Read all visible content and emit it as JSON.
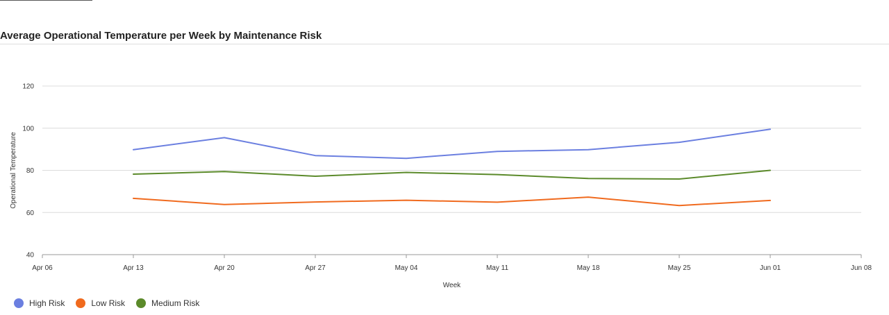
{
  "title": "Average Operational Temperature per Week by Maintenance Risk",
  "chart_data": {
    "type": "line",
    "title": "Average Operational Temperature per Week by Maintenance Risk",
    "xlabel": "Week",
    "ylabel": "Operational Temperature",
    "x_ticks": [
      "Apr 06",
      "Apr 13",
      "Apr 20",
      "Apr 27",
      "May 04",
      "May 11",
      "May 18",
      "May 25",
      "Jun 01",
      "Jun 08"
    ],
    "x": [
      "Apr 13",
      "Apr 20",
      "Apr 27",
      "May 04",
      "May 11",
      "May 18",
      "May 25",
      "Jun 01"
    ],
    "ylim": [
      40,
      120
    ],
    "y_ticks": [
      40,
      60,
      80,
      100,
      120
    ],
    "grid": "horizontal",
    "legend_position": "bottom-left",
    "series": [
      {
        "name": "High Risk",
        "color": "#6b7fe0",
        "values": [
          89.8,
          95.5,
          87.0,
          85.7,
          89.0,
          89.8,
          93.3,
          99.5
        ]
      },
      {
        "name": "Low Risk",
        "color": "#f06a1e",
        "values": [
          66.7,
          63.8,
          65.0,
          65.8,
          64.9,
          67.3,
          63.3,
          65.7
        ]
      },
      {
        "name": "Medium Risk",
        "color": "#5b8a2a",
        "values": [
          78.2,
          79.4,
          77.2,
          79.0,
          78.0,
          76.1,
          75.9,
          80.0
        ]
      }
    ]
  }
}
